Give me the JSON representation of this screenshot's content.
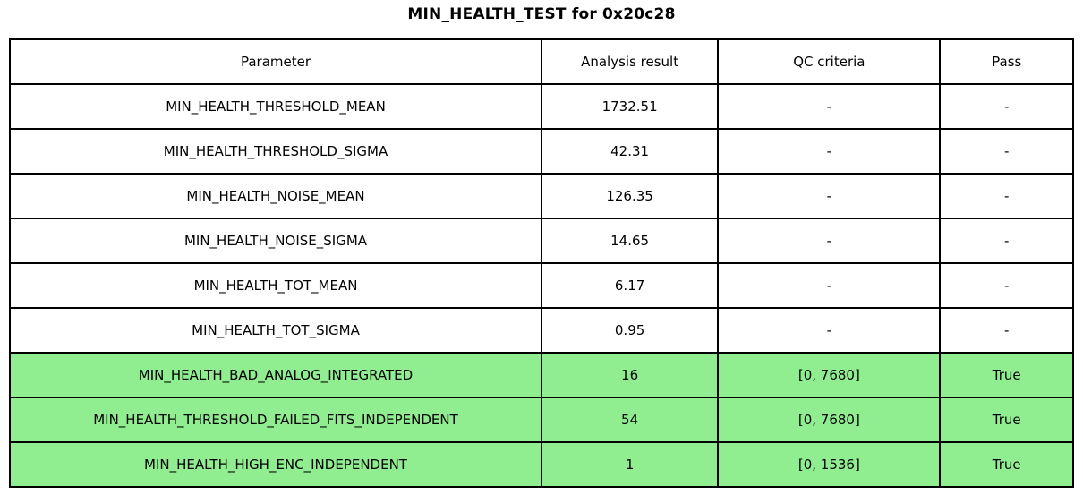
{
  "page_title": "MIN_HEALTH_TEST for 0x20c28",
  "colors": {
    "pass_row_bg": "#90EE90",
    "row_bg": "#FFFFFF",
    "border": "#000000",
    "text": "#000000"
  },
  "chart_data": {
    "type": "table",
    "title": "MIN_HEALTH_TEST for 0x20c28",
    "columns": [
      "Parameter",
      "Analysis result",
      "QC criteria",
      "Pass"
    ],
    "rows": [
      {
        "cells": [
          "MIN_HEALTH_THRESHOLD_MEAN",
          "1732.51",
          "-",
          "-"
        ],
        "pass_highlight": false
      },
      {
        "cells": [
          "MIN_HEALTH_THRESHOLD_SIGMA",
          "42.31",
          "-",
          "-"
        ],
        "pass_highlight": false
      },
      {
        "cells": [
          "MIN_HEALTH_NOISE_MEAN",
          "126.35",
          "-",
          "-"
        ],
        "pass_highlight": false
      },
      {
        "cells": [
          "MIN_HEALTH_NOISE_SIGMA",
          "14.65",
          "-",
          "-"
        ],
        "pass_highlight": false
      },
      {
        "cells": [
          "MIN_HEALTH_TOT_MEAN",
          "6.17",
          "-",
          "-"
        ],
        "pass_highlight": false
      },
      {
        "cells": [
          "MIN_HEALTH_TOT_SIGMA",
          "0.95",
          "-",
          "-"
        ],
        "pass_highlight": false
      },
      {
        "cells": [
          "MIN_HEALTH_BAD_ANALOG_INTEGRATED",
          "16",
          "[0, 7680]",
          "True"
        ],
        "pass_highlight": true
      },
      {
        "cells": [
          "MIN_HEALTH_THRESHOLD_FAILED_FITS_INDEPENDENT",
          "54",
          "[0, 7680]",
          "True"
        ],
        "pass_highlight": true
      },
      {
        "cells": [
          "MIN_HEALTH_HIGH_ENC_INDEPENDENT",
          "1",
          "[0, 1536]",
          "True"
        ],
        "pass_highlight": true
      }
    ]
  }
}
